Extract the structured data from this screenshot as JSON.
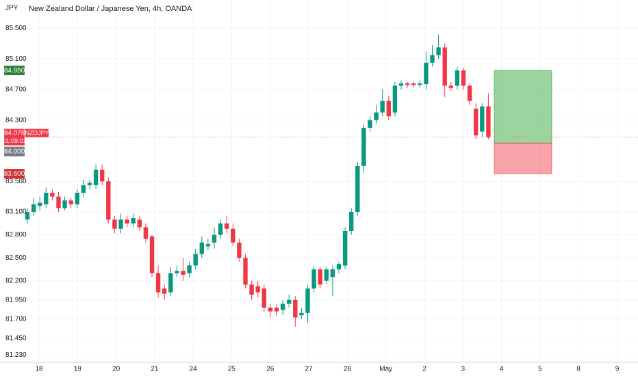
{
  "chart_data": {
    "type": "candlestick",
    "title": "New Zealand Dollar / Japanese Yen, 4h, OANDA",
    "currency_label": "JPY",
    "symbol": "NZDJPY",
    "countdown": "01:09:01",
    "up_color": "#089981",
    "down_color": "#f23645",
    "grid": true,
    "ylim": [
      81.09,
      85.87
    ],
    "yticks": [
      {
        "value": 85.5,
        "label": "85.500"
      },
      {
        "value": 85.1,
        "label": "85.100"
      },
      {
        "value": 84.7,
        "label": "84.700"
      },
      {
        "value": 84.3,
        "label": "84.300"
      },
      {
        "value": 83.5,
        "label": "83.500"
      },
      {
        "value": 83.1,
        "label": "83.100"
      },
      {
        "value": 82.8,
        "label": "82.800"
      },
      {
        "value": 82.5,
        "label": "82.500"
      },
      {
        "value": 82.2,
        "label": "82.200"
      },
      {
        "value": 81.95,
        "label": "81.950"
      },
      {
        "value": 81.7,
        "label": "81.700"
      },
      {
        "value": 81.45,
        "label": "81.450"
      },
      {
        "value": 81.23,
        "label": "81.230"
      }
    ],
    "x_labels": [
      "18",
      "19",
      "20",
      "21",
      "24",
      "25",
      "26",
      "27",
      "28",
      "May",
      "2",
      "3",
      "4",
      "5",
      "8",
      "9"
    ],
    "open": [
      83.0,
      83.1,
      83.18,
      83.2,
      83.35,
      83.3,
      83.15,
      83.25,
      83.2,
      83.35,
      83.45,
      83.45,
      83.65,
      83.5,
      83.0,
      82.88,
      83.0,
      82.95,
      83.0,
      82.9,
      82.78,
      82.3,
      82.1,
      82.05,
      82.3,
      82.33,
      82.3,
      82.4,
      82.55,
      82.65,
      82.7,
      82.8,
      82.95,
      82.88,
      82.7,
      82.5,
      82.15,
      82.13,
      82.1,
      81.85,
      81.85,
      81.82,
      81.9,
      81.95,
      81.75,
      81.78,
      82.1,
      82.35,
      82.2,
      82.25,
      82.35,
      82.4,
      82.85,
      83.1,
      83.7,
      84.2,
      84.3,
      84.4,
      84.55,
      84.4,
      84.75,
      84.78,
      84.78,
      84.76,
      84.77,
      85.05,
      85.15,
      85.25,
      84.75,
      84.75,
      84.95,
      84.75,
      84.45,
      84.15,
      84.48
    ],
    "high": [
      83.15,
      83.28,
      83.3,
      83.42,
      83.4,
      83.36,
      83.3,
      83.28,
      83.4,
      83.52,
      83.52,
      83.72,
      83.72,
      83.55,
      83.05,
      83.08,
      83.05,
      83.08,
      83.05,
      82.95,
      82.8,
      82.4,
      82.15,
      82.38,
      82.4,
      82.5,
      82.45,
      82.62,
      82.78,
      82.75,
      82.9,
      83.0,
      83.05,
      82.95,
      82.75,
      82.55,
      82.2,
      82.2,
      82.15,
      81.9,
      81.9,
      81.95,
      82.02,
      82.0,
      81.85,
      82.15,
      82.38,
      82.38,
      82.38,
      82.4,
      82.45,
      82.9,
      83.15,
      83.75,
      84.25,
      84.35,
      84.5,
      84.7,
      84.62,
      84.8,
      84.82,
      84.8,
      84.8,
      84.82,
      85.2,
      85.28,
      85.42,
      85.3,
      84.8,
      85.0,
      84.98,
      84.78,
      84.52,
      84.52,
      84.65
    ],
    "low": [
      82.95,
      83.05,
      83.12,
      83.15,
      83.25,
      83.1,
      83.12,
      83.15,
      83.15,
      83.3,
      83.4,
      83.4,
      83.45,
      82.95,
      82.82,
      82.82,
      82.9,
      82.9,
      82.85,
      82.7,
      82.25,
      81.98,
      81.95,
      82.0,
      82.25,
      82.2,
      82.25,
      82.35,
      82.5,
      82.6,
      82.62,
      82.75,
      82.82,
      82.65,
      82.45,
      82.1,
      81.95,
      81.98,
      81.8,
      81.72,
      81.74,
      81.75,
      81.85,
      81.6,
      81.7,
      81.65,
      82.05,
      82.1,
      82.15,
      82.0,
      82.3,
      82.35,
      82.8,
      83.05,
      83.6,
      84.15,
      84.25,
      84.35,
      84.3,
      84.35,
      84.7,
      84.72,
      84.72,
      84.72,
      84.7,
      85.0,
      85.1,
      84.6,
      84.68,
      84.7,
      84.7,
      84.5,
      84.05,
      84.08,
      84.05
    ],
    "close": [
      83.1,
      83.2,
      83.22,
      83.35,
      83.3,
      83.15,
      83.25,
      83.2,
      83.35,
      83.45,
      83.48,
      83.65,
      83.5,
      83.0,
      82.88,
      83.0,
      82.95,
      83.02,
      82.9,
      82.75,
      82.3,
      82.05,
      82.03,
      82.3,
      82.33,
      82.28,
      82.4,
      82.55,
      82.7,
      82.68,
      82.8,
      82.95,
      82.88,
      82.7,
      82.5,
      82.15,
      82.02,
      82.05,
      81.85,
      81.8,
      81.8,
      81.9,
      81.95,
      81.72,
      81.78,
      82.1,
      82.35,
      82.15,
      82.35,
      82.35,
      82.42,
      82.85,
      83.1,
      83.7,
      84.2,
      84.3,
      84.4,
      84.55,
      84.35,
      84.75,
      84.78,
      84.76,
      84.76,
      84.78,
      85.05,
      85.15,
      85.25,
      84.75,
      84.72,
      84.95,
      84.75,
      84.55,
      84.1,
      84.48,
      84.078
    ],
    "last_price": {
      "value": 84.078,
      "label": "84.078"
    },
    "position": {
      "target": {
        "value": 84.95,
        "label": "84.950"
      },
      "entry": {
        "value": 84.0,
        "label": "84.000"
      },
      "stop": {
        "value": 83.6,
        "label": "83.600"
      }
    }
  }
}
